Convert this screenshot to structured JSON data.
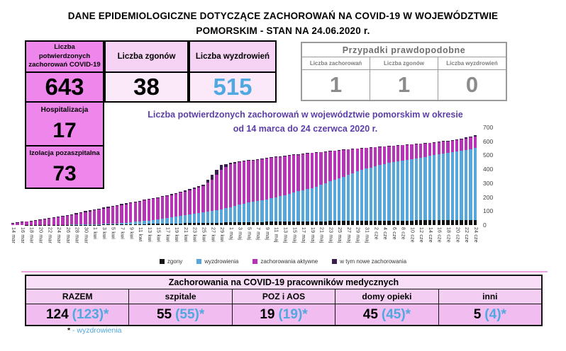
{
  "title": {
    "line1": "DANE EPIDEMIOLOGICZNE DOTYCZĄCE ZACHOROWAŃ NA COVID-19 W WOJEWÓDZTWIE",
    "line2": "POMORSKIM - STAN NA 24.06.2020 r."
  },
  "summary_boxes": {
    "confirmed": {
      "label": "Liczba potwierdzonych zachorowań COVID-19",
      "value": "643"
    },
    "deaths": {
      "label": "Liczba zgonów",
      "value": "38"
    },
    "recovered": {
      "label": "Liczba wyzdrowień",
      "value": "515"
    },
    "hospitalization": {
      "label": "Hospitalizacja",
      "value": "17"
    },
    "isolation": {
      "label": "Izolacja pozaszpitalna",
      "value": "73"
    }
  },
  "probable_cases": {
    "title": "Przypadki prawdopodobne",
    "columns": [
      {
        "label": "Liczba zachorowań",
        "value": "1"
      },
      {
        "label": "Liczba zgonów",
        "value": "1"
      },
      {
        "label": "Liczba wyzdrowień",
        "value": "0"
      }
    ]
  },
  "chart_data": {
    "type": "bar",
    "subtype": "stacked-bar, one bar per day, x tick labels every 2nd day",
    "title_line1": "Liczba potwierdzonych zachorowań w województwie pomorskim w okresie",
    "title_line2": "od 14 marca do 24 czerwca 2020 r.",
    "ylim": [
      0,
      700
    ],
    "y_ticks": [
      0,
      100,
      200,
      300,
      400,
      500,
      600,
      700
    ],
    "y_axis_position": "right",
    "grid": false,
    "legend_position": "bottom",
    "x_labels": [
      "14 mar",
      "16 mar",
      "18 mar",
      "20 mar",
      "22 mar",
      "24 mar",
      "26 mar",
      "28 mar",
      "30 mar",
      "1 kwi",
      "3 kwi",
      "5 kwi",
      "7 kwi",
      "9 kwi",
      "11 kwi",
      "13 kwi",
      "15 kwi",
      "17 kwi",
      "19 kwi",
      "21 kwi",
      "23 kwi",
      "25 kwi",
      "27 kwi",
      "29 kwi",
      "1 maj",
      "3 maj",
      "5 maj",
      "7 maj",
      "9 maj",
      "11 maj",
      "13 maj",
      "15 maj",
      "17 maj",
      "19 maj",
      "21 maj",
      "23 maj",
      "25 maj",
      "27 maj",
      "29 maj",
      "31 maj",
      "2 cze",
      "4 cze",
      "6 cze",
      "8 cze",
      "10 cze",
      "12 cze",
      "14 cze",
      "16 cze",
      "18 cze",
      "20 cze",
      "22 cze",
      "24 cze"
    ],
    "series": [
      {
        "name": "zgony",
        "color": "#141414",
        "values": [
          0,
          0,
          1,
          1,
          1,
          1,
          1,
          2,
          2,
          2,
          3,
          3,
          4,
          5,
          6,
          8,
          9,
          10,
          12,
          13,
          14,
          15,
          16,
          17,
          19,
          20,
          21,
          22,
          23,
          24,
          24,
          25,
          26,
          26,
          27,
          28,
          28,
          29,
          30,
          30,
          31,
          32,
          32,
          33,
          33,
          34,
          35,
          35,
          36,
          37,
          37,
          38
        ]
      },
      {
        "name": "wyzdrowienia",
        "color": "#57A7DB",
        "values": [
          0,
          0,
          0,
          0,
          0,
          1,
          1,
          2,
          3,
          3,
          5,
          8,
          10,
          15,
          20,
          25,
          30,
          40,
          50,
          58,
          65,
          75,
          85,
          95,
          110,
          125,
          140,
          150,
          160,
          175,
          190,
          210,
          225,
          240,
          260,
          285,
          305,
          330,
          355,
          375,
          390,
          405,
          420,
          430,
          440,
          450,
          460,
          470,
          480,
          490,
          500,
          515
        ]
      },
      {
        "name": "zachorowania aktywne",
        "color": "#B734B7",
        "values": [
          8,
          20,
          26,
          34,
          44,
          53,
          63,
          73,
          87,
          100,
          109,
          119,
          128,
          137,
          144,
          149,
          156,
          157,
          160,
          169,
          181,
          190,
          224,
          283,
          308,
          305,
          299,
          296,
          293,
          286,
          280,
          266,
          257,
          249,
          234,
          215,
          202,
          182,
          162,
          147,
          136,
          125,
          115,
          109,
          104,
          98,
          92,
          89,
          85,
          83,
          84,
          82
        ]
      },
      {
        "name": "w tym nowe zachorowania",
        "color": "#3A1E4E",
        "values": [
          7,
          5,
          3,
          5,
          5,
          5,
          5,
          8,
          8,
          5,
          8,
          5,
          8,
          8,
          5,
          8,
          5,
          8,
          8,
          10,
          10,
          10,
          35,
          35,
          8,
          5,
          5,
          4,
          4,
          5,
          4,
          4,
          4,
          3,
          4,
          4,
          3,
          4,
          3,
          3,
          3,
          3,
          3,
          3,
          3,
          3,
          3,
          4,
          4,
          5,
          7,
          8
        ]
      }
    ],
    "totals_cumulative_confirmed": [
      15,
      25,
      30,
      40,
      50,
      60,
      70,
      85,
      100,
      110,
      125,
      135,
      150,
      165,
      175,
      190,
      200,
      215,
      230,
      250,
      270,
      290,
      360,
      430,
      445,
      455,
      465,
      472,
      480,
      490,
      498,
      505,
      512,
      518,
      525,
      532,
      538,
      545,
      550,
      555,
      560,
      565,
      570,
      575,
      580,
      585,
      590,
      598,
      605,
      615,
      628,
      643
    ]
  },
  "medical_table": {
    "title": "Zachorowania na COVID-19 pracowników medycznych",
    "columns": [
      {
        "label": "RAZEM",
        "value": "124",
        "recovered": "(123)*"
      },
      {
        "label": "szpitale",
        "value": "55",
        "recovered": "(55)*"
      },
      {
        "label": "POZ i AOS",
        "value": "19",
        "recovered": "(19)*"
      },
      {
        "label": "domy opieki",
        "value": "45",
        "recovered": "(45)*"
      },
      {
        "label": "inni",
        "value": "5",
        "recovered": "(4)*"
      }
    ]
  },
  "footnote": {
    "marker": "*",
    "text": "- wyzdrowienia"
  },
  "colors": {
    "accent_blue": "#4FA8DF",
    "box_violet": "#EE86EC",
    "box_light_pink": "#F6D2F4",
    "chart_title_purple": "#5B3EA8",
    "bar_deaths": "#141414",
    "bar_recovered": "#57A7DB",
    "bar_active": "#B734B7",
    "bar_new": "#3A1E4E",
    "probable_gray": "#8c8c8c",
    "table_pink": "#F1BCEF"
  }
}
